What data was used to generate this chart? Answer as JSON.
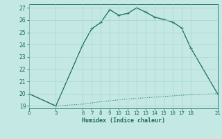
{
  "xlabel": "Humidex (Indice chaleur)",
  "background_color": "#c4e8e4",
  "line_color": "#1a6b5a",
  "x_ticks": [
    0,
    3,
    6,
    7,
    8,
    9,
    10,
    11,
    12,
    13,
    14,
    15,
    16,
    17,
    18,
    21
  ],
  "xlim": [
    0,
    21
  ],
  "ylim": [
    18.8,
    27.3
  ],
  "y_ticks": [
    19,
    20,
    21,
    22,
    23,
    24,
    25,
    26,
    27
  ],
  "curve1_x": [
    0,
    3,
    6,
    7,
    8,
    9,
    10,
    11,
    12,
    13,
    14,
    15,
    16,
    17,
    18,
    21
  ],
  "curve1_y": [
    20.0,
    19.0,
    24.0,
    25.3,
    25.8,
    26.85,
    26.4,
    26.55,
    27.0,
    26.65,
    26.25,
    26.05,
    25.85,
    25.35,
    23.75,
    20.0
  ],
  "curve2_x": [
    0,
    3,
    6,
    7,
    8,
    9,
    10,
    11,
    12,
    13,
    14,
    15,
    16,
    17,
    18,
    21
  ],
  "curve2_y": [
    20.0,
    19.0,
    19.15,
    19.25,
    19.35,
    19.42,
    19.5,
    19.57,
    19.62,
    19.67,
    19.72,
    19.77,
    19.82,
    19.87,
    19.92,
    20.0
  ],
  "grid_color": "#a8d4d0"
}
